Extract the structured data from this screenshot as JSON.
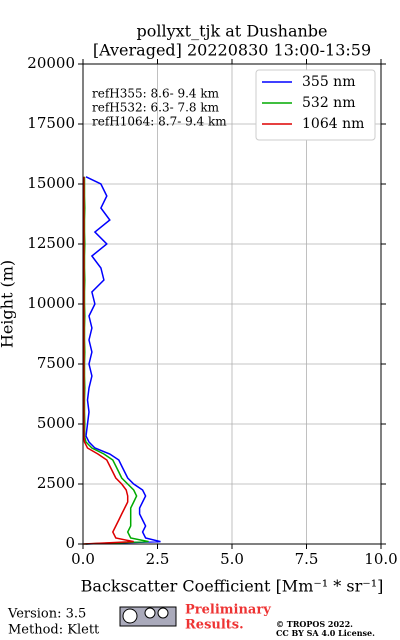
{
  "chart_data": {
    "type": "line",
    "orientation": "vertical-profile",
    "title": "pollyxt_tjk at Dushanbe",
    "subtitle": "[Averaged] 20220830 13:00-13:59",
    "x_label": "Backscatter Coefficient [Mm⁻¹ * sr⁻¹]",
    "y_label": "Height (m)",
    "annotations": [
      "refH355:  8.6- 9.4 km",
      "refH532:  6.3- 7.8 km",
      "refH1064:  8.7- 9.4 km"
    ],
    "y": [
      0,
      100,
      250,
      500,
      750,
      1000,
      1250,
      1500,
      1750,
      2000,
      2250,
      2500,
      2750,
      3000,
      3250,
      3500,
      3750,
      4000,
      4250,
      4500,
      5000,
      5500,
      6000,
      6500,
      7000,
      7500,
      8000,
      8500,
      9000,
      9500,
      10000,
      10500,
      11000,
      11500,
      12000,
      12500,
      13000,
      13500,
      14000,
      14500,
      15000,
      15300
    ],
    "series": [
      {
        "name": "355 nm",
        "color": "#0000ff",
        "values": [
          0.1,
          2.6,
          2.1,
          2.0,
          2.1,
          2.0,
          1.9,
          1.9,
          2.0,
          2.1,
          2.0,
          1.7,
          1.5,
          1.4,
          1.3,
          1.2,
          0.9,
          0.4,
          0.2,
          0.1,
          0.15,
          0.2,
          0.15,
          0.2,
          0.3,
          0.2,
          0.3,
          0.2,
          0.3,
          0.2,
          0.4,
          0.3,
          0.7,
          0.6,
          0.3,
          0.8,
          0.4,
          0.9,
          0.6,
          0.8,
          0.6,
          0.1
        ]
      },
      {
        "name": "532 nm",
        "color": "#00aa00",
        "values": [
          0.05,
          2.2,
          1.6,
          1.5,
          1.6,
          1.6,
          1.6,
          1.6,
          1.7,
          1.8,
          1.7,
          1.5,
          1.3,
          1.2,
          1.1,
          1.0,
          0.7,
          0.3,
          0.1,
          0.05,
          0.06,
          0.05,
          0.05,
          0.06,
          0.05,
          0.05,
          0.06,
          0.05,
          0.05,
          0.06,
          0.05,
          0.05,
          0.06,
          0.05,
          0.05,
          0.06,
          0.05,
          0.05,
          0.06,
          0.05,
          0.05,
          0.05
        ]
      },
      {
        "name": "1064 nm",
        "color": "#dd0000",
        "values": [
          0.02,
          1.7,
          1.1,
          1.0,
          1.1,
          1.2,
          1.3,
          1.4,
          1.5,
          1.5,
          1.45,
          1.3,
          1.1,
          1.0,
          0.9,
          0.8,
          0.5,
          0.15,
          0.05,
          0.03,
          0.03,
          0.03,
          0.03,
          0.03,
          0.03,
          0.03,
          0.03,
          0.03,
          0.03,
          0.03,
          0.03,
          0.03,
          0.03,
          0.03,
          0.03,
          0.03,
          0.03,
          0.03,
          0.03,
          0.03,
          0.03,
          0.03
        ]
      }
    ],
    "xlim": [
      0,
      10
    ],
    "ylim": [
      0,
      20000
    ],
    "xticks": [
      {
        "value": 0,
        "label": "0.0"
      },
      {
        "value": 2.5,
        "label": "2.5"
      },
      {
        "value": 5,
        "label": "5.0"
      },
      {
        "value": 7.5,
        "label": "7.5"
      },
      {
        "value": 10,
        "label": "10.0"
      }
    ],
    "yticks": [
      0,
      2500,
      5000,
      7500,
      10000,
      12500,
      15000,
      17500,
      20000
    ],
    "grid": true,
    "legend": "upper-right"
  },
  "footer": {
    "version": "Version: 3.5",
    "method": "Method: Klett",
    "preliminary": [
      "Preliminary",
      "Results."
    ],
    "copyright": [
      "© TROPOS 2022.",
      "CC BY SA 4.0 License."
    ]
  }
}
